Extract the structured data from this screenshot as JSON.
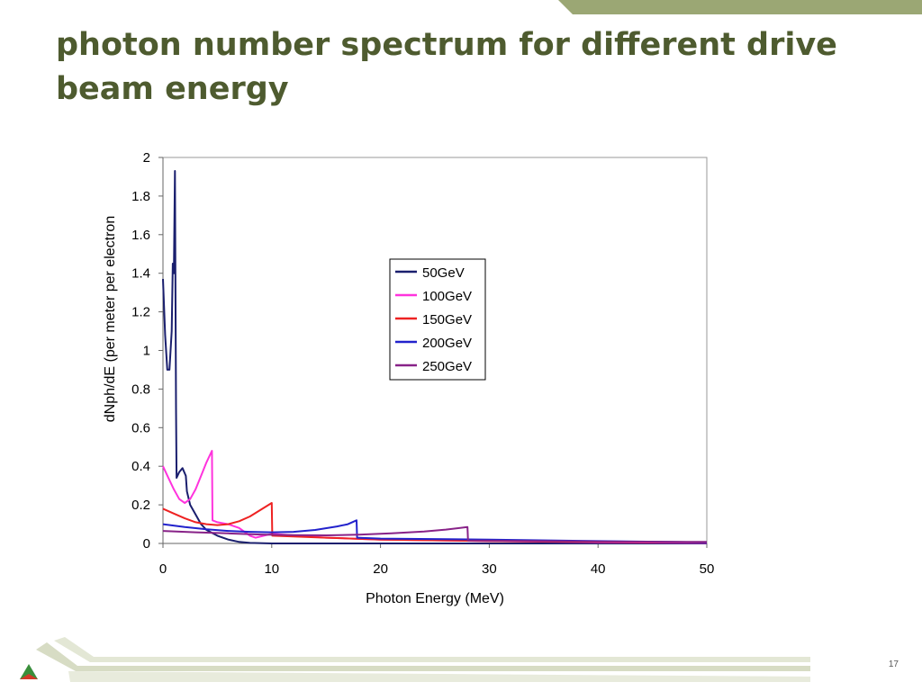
{
  "slide": {
    "title": "photon number spectrum for different drive beam energy",
    "page_number": "17",
    "accent_color": "#9ba774",
    "title_color": "#4e5b2f"
  },
  "chart_data": {
    "type": "line",
    "title": "",
    "xlabel": "Photon Energy (MeV)",
    "ylabel": "dNph/dE (per meter per electron",
    "xlim": [
      0,
      50
    ],
    "ylim": [
      0,
      2
    ],
    "xticks": [
      0,
      10,
      20,
      30,
      40,
      50
    ],
    "yticks": [
      0,
      0.2,
      0.4,
      0.6,
      0.8,
      1,
      1.2,
      1.4,
      1.6,
      1.8,
      2
    ],
    "ytick_labels": [
      "0",
      "0.2",
      "0.4",
      "0.6",
      "0.8",
      "1",
      "1.2",
      "1.4",
      "1.6",
      "1.8",
      "2"
    ],
    "grid": false,
    "legend_position": "center",
    "series": [
      {
        "name": "50GeV",
        "color": "#1a1f6e",
        "points": [
          [
            0,
            1.37
          ],
          [
            0.2,
            1.08
          ],
          [
            0.4,
            0.9
          ],
          [
            0.6,
            0.9
          ],
          [
            0.8,
            1.1
          ],
          [
            0.9,
            1.45
          ],
          [
            1.0,
            1.4
          ],
          [
            1.1,
            1.93
          ],
          [
            1.15,
            1.3
          ],
          [
            1.2,
            0.7
          ],
          [
            1.25,
            0.34
          ],
          [
            1.5,
            0.37
          ],
          [
            1.8,
            0.39
          ],
          [
            2.1,
            0.35
          ],
          [
            2.2,
            0.27
          ],
          [
            2.5,
            0.2
          ],
          [
            3,
            0.15
          ],
          [
            3.5,
            0.1
          ],
          [
            4,
            0.07
          ],
          [
            5,
            0.04
          ],
          [
            6,
            0.02
          ],
          [
            7,
            0.008
          ],
          [
            8,
            0.003
          ],
          [
            10,
            0
          ],
          [
            20,
            0
          ],
          [
            30,
            0
          ],
          [
            40,
            0
          ],
          [
            50,
            0
          ]
        ]
      },
      {
        "name": "100GeV",
        "color": "#ff33dd",
        "points": [
          [
            0,
            0.4
          ],
          [
            0.5,
            0.34
          ],
          [
            1,
            0.28
          ],
          [
            1.5,
            0.23
          ],
          [
            2,
            0.21
          ],
          [
            2.5,
            0.23
          ],
          [
            3,
            0.28
          ],
          [
            3.5,
            0.35
          ],
          [
            4,
            0.42
          ],
          [
            4.5,
            0.48
          ],
          [
            4.55,
            0.12
          ],
          [
            5,
            0.11
          ],
          [
            6,
            0.1
          ],
          [
            7,
            0.08
          ],
          [
            8,
            0.04
          ],
          [
            8.5,
            0.03
          ],
          [
            10,
            0.05
          ],
          [
            15,
            0.03
          ],
          [
            20,
            0.02
          ],
          [
            30,
            0.012
          ],
          [
            40,
            0.006
          ],
          [
            50,
            0.003
          ]
        ]
      },
      {
        "name": "150GeV",
        "color": "#ee2222",
        "points": [
          [
            0,
            0.18
          ],
          [
            1,
            0.155
          ],
          [
            2,
            0.13
          ],
          [
            3,
            0.11
          ],
          [
            4,
            0.1
          ],
          [
            5,
            0.095
          ],
          [
            6,
            0.1
          ],
          [
            7,
            0.115
          ],
          [
            8,
            0.14
          ],
          [
            9,
            0.175
          ],
          [
            10,
            0.21
          ],
          [
            10.05,
            0.04
          ],
          [
            15,
            0.03
          ],
          [
            20,
            0.02
          ],
          [
            30,
            0.012
          ],
          [
            40,
            0.008
          ],
          [
            50,
            0.005
          ]
        ]
      },
      {
        "name": "200GeV",
        "color": "#2222cc",
        "points": [
          [
            0,
            0.1
          ],
          [
            2,
            0.085
          ],
          [
            4,
            0.073
          ],
          [
            6,
            0.065
          ],
          [
            8,
            0.06
          ],
          [
            10,
            0.058
          ],
          [
            12,
            0.06
          ],
          [
            14,
            0.07
          ],
          [
            16,
            0.088
          ],
          [
            17,
            0.1
          ],
          [
            17.8,
            0.12
          ],
          [
            17.85,
            0.03
          ],
          [
            20,
            0.025
          ],
          [
            30,
            0.02
          ],
          [
            40,
            0.012
          ],
          [
            50,
            0.006
          ]
        ]
      },
      {
        "name": "250GeV",
        "color": "#882288",
        "points": [
          [
            0,
            0.065
          ],
          [
            3,
            0.058
          ],
          [
            6,
            0.052
          ],
          [
            9,
            0.046
          ],
          [
            12,
            0.043
          ],
          [
            15,
            0.042
          ],
          [
            18,
            0.045
          ],
          [
            21,
            0.052
          ],
          [
            24,
            0.062
          ],
          [
            26,
            0.072
          ],
          [
            28,
            0.085
          ],
          [
            28.05,
            0.015
          ],
          [
            35,
            0.012
          ],
          [
            40,
            0.01
          ],
          [
            50,
            0.008
          ]
        ]
      }
    ]
  }
}
